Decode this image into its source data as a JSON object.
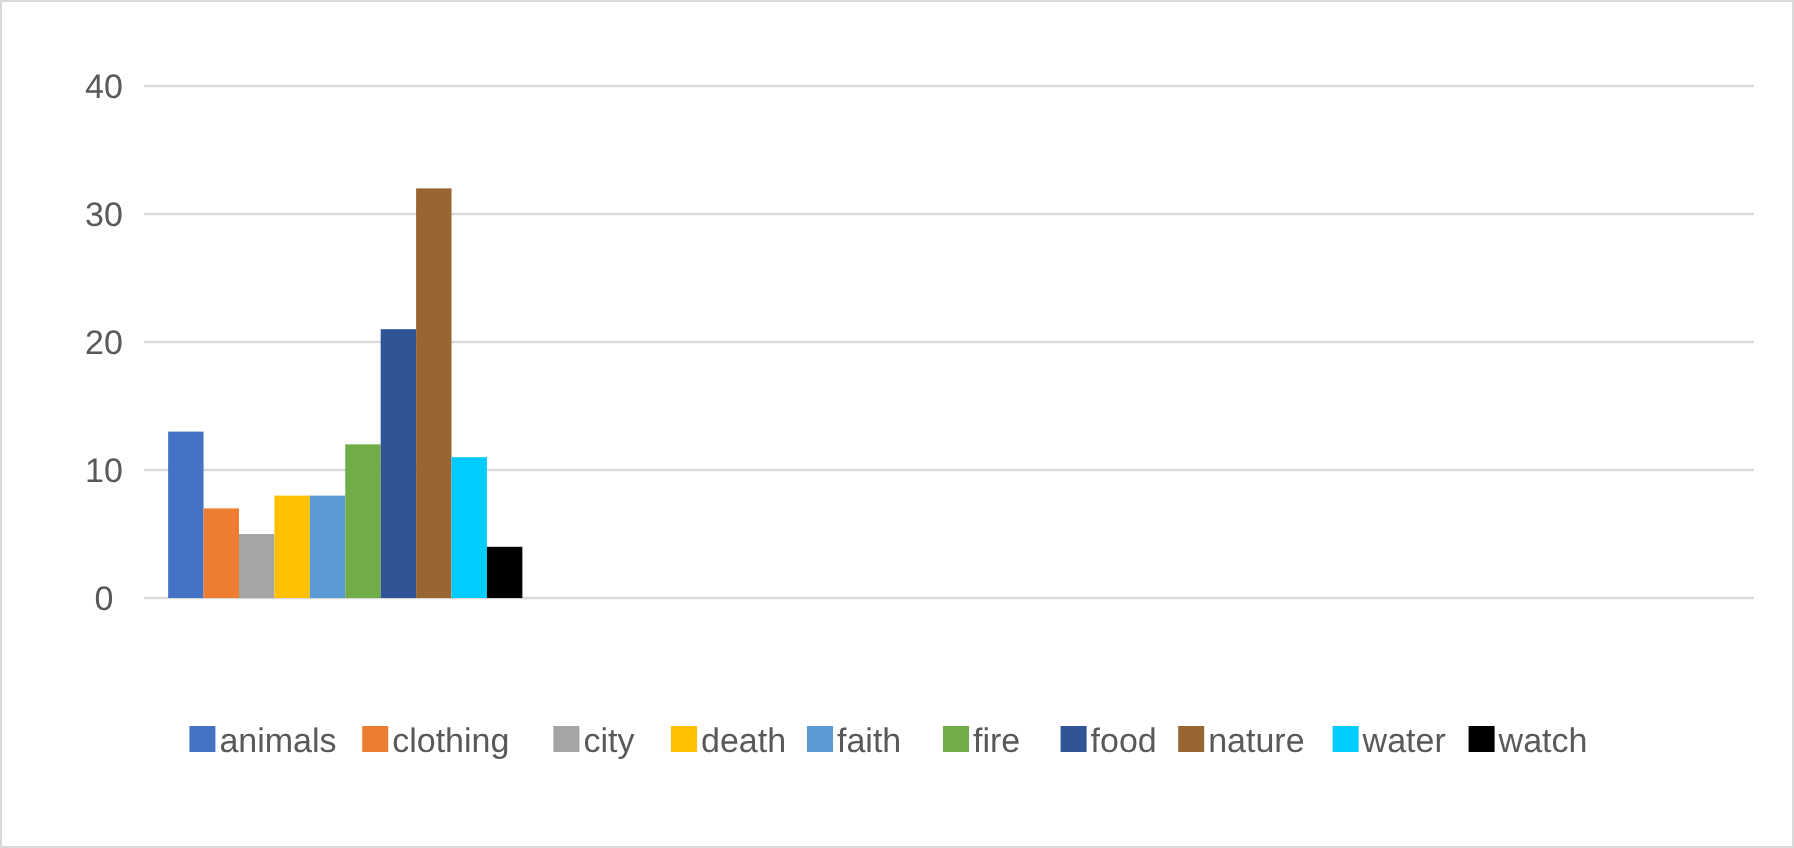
{
  "chart_data": {
    "type": "bar",
    "categories": [
      null,
      null,
      null,
      null
    ],
    "series": [
      {
        "name": "animals",
        "color": "#4472c4",
        "values": [
          13,
          null,
          null,
          null
        ]
      },
      {
        "name": "clothing",
        "color": "#ed7d31",
        "values": [
          7,
          null,
          null,
          null
        ]
      },
      {
        "name": "city",
        "color": "#a5a5a5",
        "values": [
          5,
          null,
          null,
          null
        ]
      },
      {
        "name": "death",
        "color": "#ffc000",
        "values": [
          8,
          null,
          null,
          null
        ]
      },
      {
        "name": "faith",
        "color": "#5b9bd5",
        "values": [
          8,
          null,
          null,
          null
        ]
      },
      {
        "name": "fire",
        "color": "#70ad47",
        "values": [
          12,
          null,
          null,
          null
        ]
      },
      {
        "name": "food",
        "color": "#2f5597",
        "values": [
          21,
          null,
          null,
          null
        ]
      },
      {
        "name": "nature",
        "color": "#996633",
        "values": [
          32,
          null,
          null,
          null
        ]
      },
      {
        "name": "water",
        "color": "#00ccff",
        "values": [
          11,
          null,
          null,
          null
        ]
      },
      {
        "name": "watch",
        "color": "#000000",
        "values": [
          4,
          null,
          null,
          null
        ]
      }
    ],
    "ylim": [
      0,
      40
    ],
    "yticks": [
      0,
      10,
      20,
      30,
      40
    ],
    "grid": "y",
    "legend": "bottom"
  }
}
